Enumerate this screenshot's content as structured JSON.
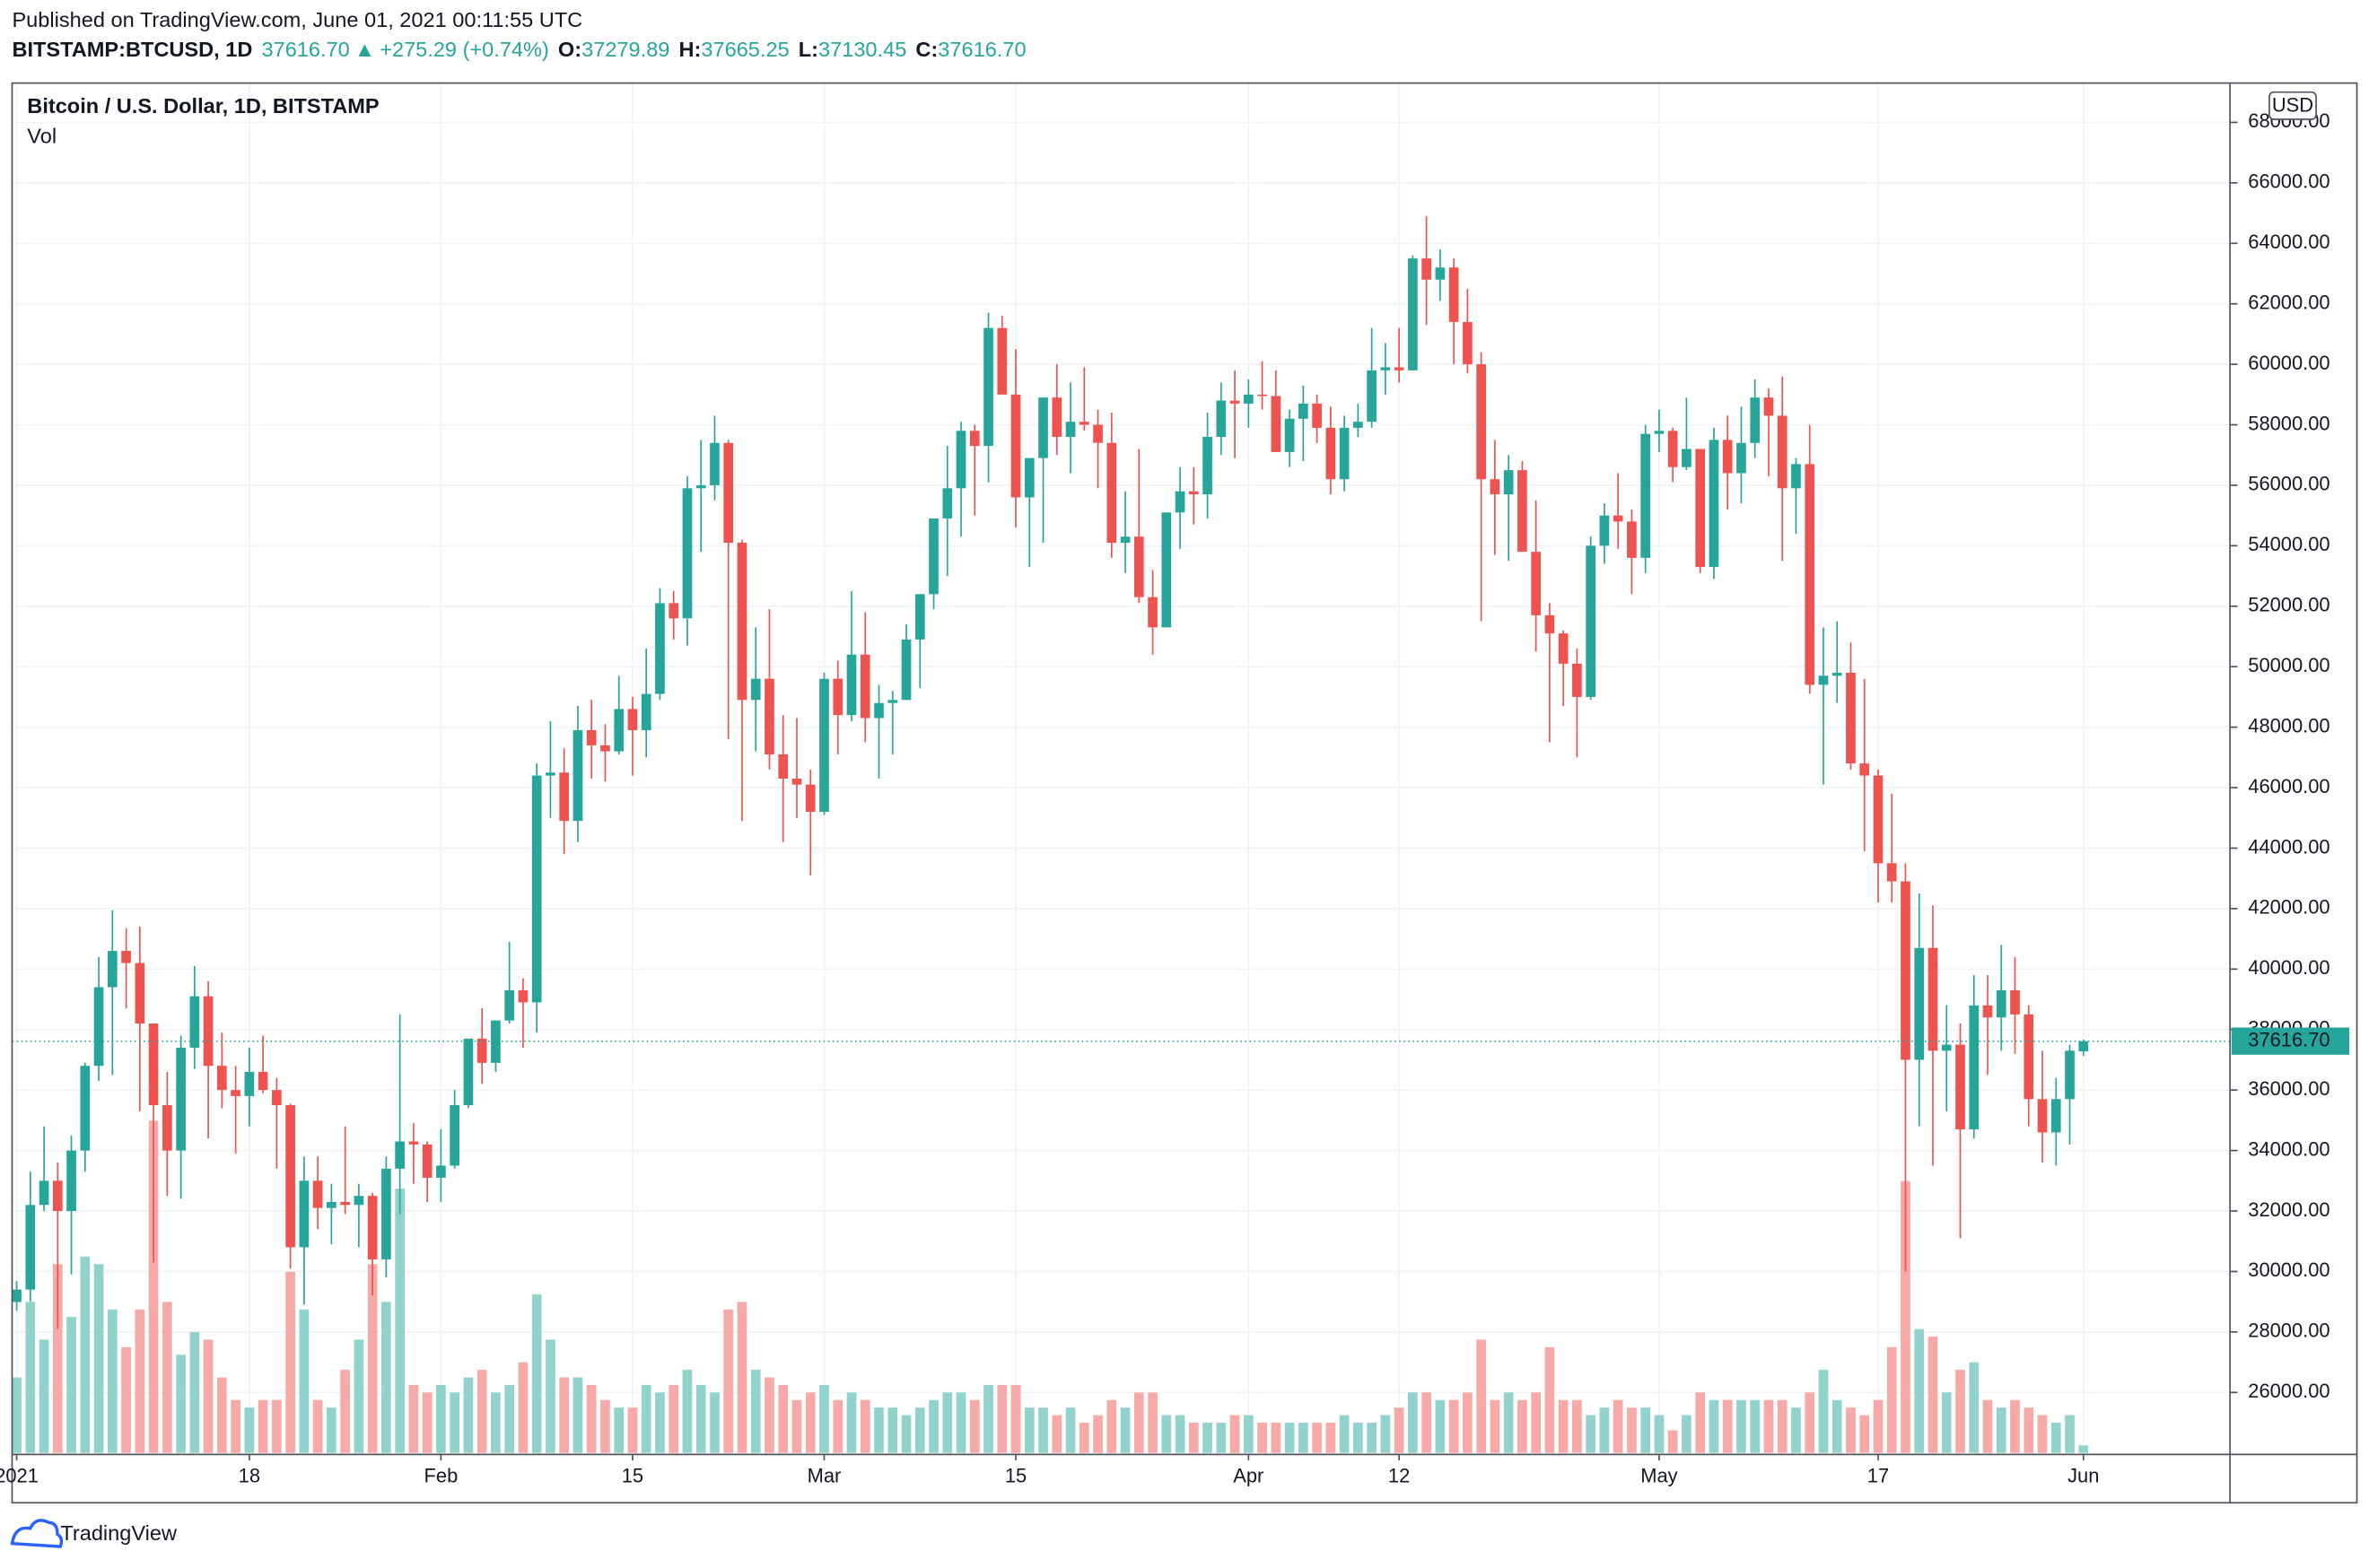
{
  "header": {
    "published": "Published on TradingView.com, June 01, 2021 00:11:55 UTC",
    "symbol": "BITSTAMP:BTCUSD, 1D",
    "last": "37616.70",
    "arrow": "▲",
    "change": "+275.29 (+0.74%)",
    "ohlc": [
      {
        "label": "O:",
        "value": "37279.89"
      },
      {
        "label": "H:",
        "value": "37665.25"
      },
      {
        "label": "L:",
        "value": "37130.45"
      },
      {
        "label": "C:",
        "value": "37616.70"
      }
    ]
  },
  "chart_data": {
    "type": "candlestick",
    "title": "Bitcoin / U.S. Dollar, 1D, BITSTAMP",
    "volume_label": "Vol",
    "currency": "USD",
    "x": [
      "2021-01-01",
      "2021-01-02",
      "2021-01-03",
      "2021-01-04",
      "2021-01-05",
      "2021-01-06",
      "2021-01-07",
      "2021-01-08",
      "2021-01-09",
      "2021-01-10",
      "2021-01-11",
      "2021-01-12",
      "2021-01-13",
      "2021-01-14",
      "2021-01-15",
      "2021-01-16",
      "2021-01-17",
      "2021-01-18",
      "2021-01-19",
      "2021-01-20",
      "2021-01-21",
      "2021-01-22",
      "2021-01-23",
      "2021-01-24",
      "2021-01-25",
      "2021-01-26",
      "2021-01-27",
      "2021-01-28",
      "2021-01-29",
      "2021-01-30",
      "2021-01-31",
      "2021-02-01",
      "2021-02-02",
      "2021-02-03",
      "2021-02-04",
      "2021-02-05",
      "2021-02-06",
      "2021-02-07",
      "2021-02-08",
      "2021-02-09",
      "2021-02-10",
      "2021-02-11",
      "2021-02-12",
      "2021-02-13",
      "2021-02-14",
      "2021-02-15",
      "2021-02-16",
      "2021-02-17",
      "2021-02-18",
      "2021-02-19",
      "2021-02-20",
      "2021-02-21",
      "2021-02-22",
      "2021-02-23",
      "2021-02-24",
      "2021-02-25",
      "2021-02-26",
      "2021-02-27",
      "2021-02-28",
      "2021-03-01",
      "2021-03-02",
      "2021-03-03",
      "2021-03-04",
      "2021-03-05",
      "2021-03-06",
      "2021-03-07",
      "2021-03-08",
      "2021-03-09",
      "2021-03-10",
      "2021-03-11",
      "2021-03-12",
      "2021-03-13",
      "2021-03-14",
      "2021-03-15",
      "2021-03-16",
      "2021-03-17",
      "2021-03-18",
      "2021-03-19",
      "2021-03-20",
      "2021-03-21",
      "2021-03-22",
      "2021-03-23",
      "2021-03-24",
      "2021-03-25",
      "2021-03-26",
      "2021-03-27",
      "2021-03-28",
      "2021-03-29",
      "2021-03-30",
      "2021-03-31",
      "2021-04-01",
      "2021-04-02",
      "2021-04-03",
      "2021-04-04",
      "2021-04-05",
      "2021-04-06",
      "2021-04-07",
      "2021-04-08",
      "2021-04-09",
      "2021-04-10",
      "2021-04-11",
      "2021-04-12",
      "2021-04-13",
      "2021-04-14",
      "2021-04-15",
      "2021-04-16",
      "2021-04-17",
      "2021-04-18",
      "2021-04-19",
      "2021-04-20",
      "2021-04-21",
      "2021-04-22",
      "2021-04-23",
      "2021-04-24",
      "2021-04-25",
      "2021-04-26",
      "2021-04-27",
      "2021-04-28",
      "2021-04-29",
      "2021-04-30",
      "2021-05-01",
      "2021-05-02",
      "2021-05-03",
      "2021-05-04",
      "2021-05-05",
      "2021-05-06",
      "2021-05-07",
      "2021-05-08",
      "2021-05-09",
      "2021-05-10",
      "2021-05-11",
      "2021-05-12",
      "2021-05-13",
      "2021-05-14",
      "2021-05-15",
      "2021-05-16",
      "2021-05-17",
      "2021-05-18",
      "2021-05-19",
      "2021-05-20",
      "2021-05-21",
      "2021-05-22",
      "2021-05-23",
      "2021-05-24",
      "2021-05-25",
      "2021-05-26",
      "2021-05-27",
      "2021-05-28",
      "2021-05-29",
      "2021-05-30",
      "2021-05-31",
      "2021-06-01"
    ],
    "open": [
      28990,
      29400,
      32200,
      33000,
      32000,
      34000,
      36800,
      39400,
      40600,
      40200,
      38200,
      35500,
      34000,
      37400,
      39100,
      36800,
      36000,
      35800,
      36600,
      36000,
      35500,
      30800,
      33000,
      32100,
      32300,
      32200,
      32500,
      30400,
      33400,
      34300,
      34200,
      33100,
      33500,
      35500,
      37700,
      36900,
      38300,
      39300,
      38900,
      46400,
      46500,
      44900,
      47900,
      47400,
      47200,
      48600,
      47900,
      49100,
      52100,
      51600,
      55900,
      56000,
      57400,
      54100,
      48900,
      49600,
      47100,
      46300,
      46100,
      45200,
      49600,
      48400,
      50400,
      48300,
      48800,
      48900,
      50900,
      52400,
      54900,
      55900,
      57800,
      57300,
      61200,
      59000,
      55600,
      56900,
      58900,
      57600,
      58100,
      58000,
      57400,
      54100,
      54300,
      52300,
      51300,
      55100,
      55800,
      55700,
      57600,
      58800,
      58700,
      59000,
      58950,
      57100,
      58200,
      58700,
      57900,
      56200,
      57900,
      58100,
      59800,
      59900,
      59800,
      63500,
      62800,
      63200,
      61400,
      60000,
      56200,
      55700,
      56500,
      53800,
      51700,
      51100,
      50100,
      49000,
      54000,
      55000,
      54800,
      53600,
      57700,
      57800,
      56600,
      57200,
      53300,
      57500,
      56400,
      57400,
      58900,
      58300,
      55900,
      56700,
      49400,
      49700,
      49800,
      46800,
      46400,
      43500,
      42900,
      37000,
      40700,
      37300,
      37500,
      34700,
      38800,
      38400,
      39300,
      38500,
      35700,
      34600,
      35700,
      37279.89
    ],
    "high": [
      29680,
      33300,
      34800,
      33600,
      34500,
      36900,
      40400,
      41950,
      41350,
      41400,
      38200,
      36600,
      37800,
      40100,
      39600,
      37900,
      36800,
      37400,
      37800,
      36400,
      35550,
      33800,
      33800,
      32900,
      34800,
      32900,
      32600,
      33800,
      38500,
      34900,
      34300,
      34700,
      36000,
      37700,
      38700,
      38300,
      40900,
      39700,
      46800,
      48200,
      47300,
      48700,
      48900,
      48100,
      49700,
      49000,
      50600,
      52600,
      52500,
      56300,
      57500,
      58300,
      57500,
      54200,
      51300,
      51900,
      48400,
      48300,
      46600,
      49800,
      50200,
      52500,
      51800,
      49400,
      49200,
      51400,
      52400,
      54900,
      57300,
      58100,
      58000,
      61700,
      61600,
      60500,
      56900,
      58900,
      60000,
      59400,
      59900,
      58500,
      58400,
      55800,
      57200,
      53200,
      55100,
      56600,
      56600,
      58400,
      59400,
      59800,
      59500,
      60100,
      59800,
      58500,
      59300,
      59000,
      58600,
      58300,
      58700,
      61200,
      60700,
      61200,
      63600,
      64900,
      63800,
      63500,
      62500,
      60400,
      57500,
      57000,
      56800,
      55500,
      52100,
      51200,
      50600,
      54300,
      55400,
      56400,
      55200,
      58000,
      58500,
      57900,
      58900,
      57200,
      57900,
      58300,
      58600,
      59500,
      59200,
      59600,
      56900,
      58000,
      51300,
      51500,
      50800,
      49600,
      46600,
      45800,
      43500,
      42500,
      42100,
      38800,
      38200,
      39800,
      39800,
      40800,
      40400,
      38800,
      37300,
      36400,
      37500,
      37665.25
    ],
    "low": [
      28700,
      29000,
      32000,
      28100,
      29900,
      33300,
      36300,
      36500,
      38700,
      35300,
      30300,
      32500,
      32400,
      36700,
      34400,
      35400,
      33900,
      34800,
      35900,
      33400,
      30100,
      28900,
      31400,
      30900,
      31900,
      30800,
      29200,
      29800,
      31900,
      32900,
      32300,
      32300,
      33400,
      35400,
      36200,
      36600,
      38200,
      37400,
      37900,
      45000,
      43800,
      44200,
      46300,
      46200,
      47100,
      46400,
      47000,
      48900,
      50900,
      50700,
      53800,
      55500,
      47600,
      44900,
      47200,
      46600,
      44200,
      45000,
      43100,
      45100,
      47100,
      48200,
      47500,
      46300,
      47100,
      48900,
      49300,
      51900,
      53000,
      54300,
      55000,
      56100,
      59000,
      54600,
      53300,
      54100,
      57000,
      56400,
      57800,
      55900,
      53600,
      53100,
      52100,
      50400,
      51300,
      53900,
      54700,
      54900,
      57000,
      56900,
      57900,
      58500,
      57100,
      56600,
      56800,
      57400,
      55700,
      55800,
      57600,
      57900,
      59000,
      59400,
      59800,
      61300,
      62100,
      60000,
      59700,
      51500,
      53700,
      53500,
      53800,
      50500,
      47500,
      48700,
      47000,
      48900,
      53400,
      53900,
      52400,
      53100,
      57100,
      56100,
      56500,
      53100,
      52900,
      55200,
      55400,
      56900,
      56300,
      53500,
      54400,
      49100,
      46100,
      48800,
      46600,
      43900,
      42200,
      42200,
      30000,
      34800,
      33500,
      35300,
      31100,
      34400,
      36500,
      37300,
      37200,
      34800,
      33600,
      33500,
      34200,
      37130.45
    ],
    "close": [
      29400,
      32200,
      33000,
      32000,
      34000,
      36800,
      39400,
      40600,
      40200,
      38200,
      35500,
      34000,
      37400,
      39100,
      36800,
      36000,
      35800,
      36600,
      36000,
      35500,
      30800,
      33000,
      32100,
      32300,
      32200,
      32500,
      30400,
      33400,
      34300,
      34200,
      33100,
      33500,
      35500,
      37700,
      36900,
      38300,
      39300,
      38900,
      46400,
      46500,
      44900,
      47900,
      47400,
      47200,
      48600,
      47900,
      49100,
      52100,
      51600,
      55900,
      56000,
      57400,
      54100,
      48900,
      49600,
      47100,
      46300,
      46100,
      45200,
      49600,
      48400,
      50400,
      48300,
      48800,
      48900,
      50900,
      52400,
      54900,
      55900,
      57800,
      57300,
      61200,
      59000,
      55600,
      56900,
      58900,
      57600,
      58100,
      58000,
      57400,
      54100,
      54300,
      52300,
      51300,
      55100,
      55800,
      55700,
      57600,
      58800,
      58700,
      59000,
      58950,
      57100,
      58200,
      58700,
      57900,
      56200,
      57900,
      58100,
      59800,
      59900,
      59800,
      63500,
      62800,
      63200,
      61400,
      60000,
      56200,
      55700,
      56500,
      53800,
      51700,
      51100,
      50100,
      49000,
      54000,
      55000,
      54800,
      53600,
      57700,
      57800,
      56600,
      57200,
      53300,
      57500,
      56400,
      57400,
      58900,
      58300,
      55900,
      56700,
      49400,
      49700,
      49800,
      46800,
      46400,
      43500,
      42900,
      37000,
      40700,
      37300,
      37500,
      34700,
      38800,
      38400,
      39300,
      38500,
      35700,
      34600,
      35700,
      37300,
      37616.7
    ],
    "volume": [
      7500,
      15000,
      11250,
      18750,
      13500,
      19500,
      18750,
      14250,
      10500,
      14250,
      33000,
      15000,
      9750,
      12000,
      11250,
      7500,
      5250,
      4500,
      5250,
      5250,
      18000,
      14250,
      5250,
      4500,
      8250,
      11250,
      18750,
      15000,
      26250,
      6750,
      6000,
      6750,
      6000,
      7500,
      8250,
      6000,
      6750,
      9000,
      15750,
      11250,
      7500,
      7500,
      6750,
      5250,
      4500,
      4500,
      6750,
      6000,
      6750,
      8250,
      6750,
      6000,
      14250,
      15000,
      8250,
      7500,
      6750,
      5250,
      6000,
      6750,
      5250,
      6000,
      5250,
      4500,
      4500,
      3750,
      4500,
      5250,
      6000,
      6000,
      5250,
      6750,
      6750,
      6750,
      4500,
      4500,
      3750,
      4500,
      3000,
      3750,
      5250,
      4500,
      6000,
      6000,
      3750,
      3750,
      3000,
      3000,
      3000,
      3750,
      3750,
      3000,
      3000,
      3000,
      3000,
      3000,
      3000,
      3750,
      3000,
      3000,
      3750,
      4500,
      6000,
      6000,
      5250,
      5250,
      6000,
      11250,
      5250,
      6000,
      5250,
      6000,
      10500,
      5250,
      5250,
      3750,
      4500,
      5250,
      4500,
      4500,
      3750,
      2250,
      3750,
      6000,
      5250,
      5250,
      5250,
      5250,
      5250,
      5250,
      4500,
      6000,
      8250,
      5250,
      4500,
      3750,
      5250,
      10500,
      27000,
      12300,
      11550,
      6000,
      8250,
      9000,
      5250,
      4500,
      5250,
      4500,
      3750,
      3000,
      3750,
      750
    ],
    "up_color": "#26a69a",
    "down_color": "#ef5350",
    "up_volume_color": "#92d2cc",
    "down_volume_color": "#f7a9a7",
    "xlim": [
      "2020-12-31T16:00",
      "2021-06-11T17:00"
    ],
    "xticks": [
      {
        "value": "2021-01-01",
        "label": "2021"
      },
      {
        "value": "2021-01-18",
        "label": "18"
      },
      {
        "value": "2021-02-01",
        "label": "Feb"
      },
      {
        "value": "2021-02-15",
        "label": "15"
      },
      {
        "value": "2021-03-01",
        "label": "Mar"
      },
      {
        "value": "2021-03-15",
        "label": "15"
      },
      {
        "value": "2021-04-01",
        "label": "Apr"
      },
      {
        "value": "2021-04-12",
        "label": "12"
      },
      {
        "value": "2021-05-01",
        "label": "May"
      },
      {
        "value": "2021-05-17",
        "label": "17"
      },
      {
        "value": "2021-06-01",
        "label": "Jun"
      }
    ],
    "ylim": [
      23950,
      69300
    ],
    "yticks": [
      {
        "value": 26000,
        "label": "26000.00"
      },
      {
        "value": 28000,
        "label": "28000.00"
      },
      {
        "value": 30000,
        "label": "30000.00"
      },
      {
        "value": 32000,
        "label": "32000.00"
      },
      {
        "value": 34000,
        "label": "34000.00"
      },
      {
        "value": 36000,
        "label": "36000.00"
      },
      {
        "value": 38000,
        "label": "38000.00"
      },
      {
        "value": 40000,
        "label": "40000.00"
      },
      {
        "value": 42000,
        "label": "42000.00"
      },
      {
        "value": 44000,
        "label": "44000.00"
      },
      {
        "value": 46000,
        "label": "46000.00"
      },
      {
        "value": 48000,
        "label": "48000.00"
      },
      {
        "value": 50000,
        "label": "50000.00"
      },
      {
        "value": 52000,
        "label": "52000.00"
      },
      {
        "value": 54000,
        "label": "54000.00"
      },
      {
        "value": 56000,
        "label": "56000.00"
      },
      {
        "value": 58000,
        "label": "58000.00"
      },
      {
        "value": 60000,
        "label": "60000.00"
      },
      {
        "value": 62000,
        "label": "62000.00"
      },
      {
        "value": 64000,
        "label": "64000.00"
      },
      {
        "value": 66000,
        "label": "66000.00"
      },
      {
        "value": 68000,
        "label": "68000.00"
      }
    ],
    "grid": true,
    "last_price": {
      "value": 37616.7,
      "label": "37616.70"
    }
  },
  "footer": {
    "brand": "TradingView"
  }
}
